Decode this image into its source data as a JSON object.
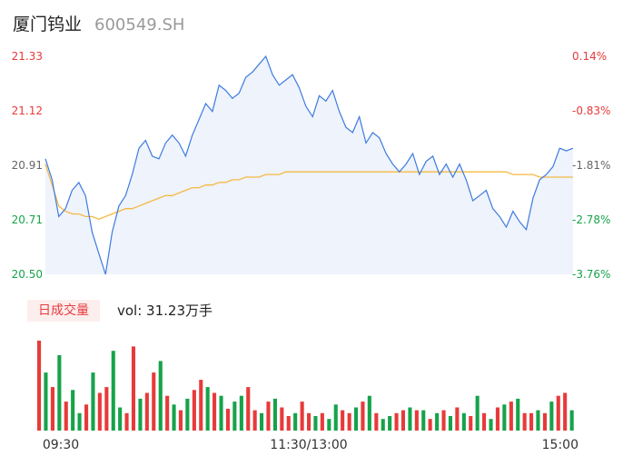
{
  "header": {
    "name": "厦门钨业",
    "code": "600549.SH"
  },
  "volume_panel": {
    "tag": "日成交量",
    "label": "vol: 31.23万手"
  },
  "colors": {
    "up": "#e83a3a",
    "down": "#16a34a",
    "price_line": "#3d7be0",
    "avg_line": "#f5b942",
    "fill": "#eef3fc"
  },
  "chart_data": [
    {
      "type": "line",
      "title": "",
      "series": [
        {
          "name": "",
          "role": "price",
          "values": [
            20.94,
            20.86,
            20.72,
            20.75,
            20.82,
            20.85,
            20.8,
            20.66,
            20.58,
            20.5,
            20.66,
            20.76,
            20.8,
            20.88,
            20.98,
            21.01,
            20.95,
            20.94,
            21.0,
            21.03,
            21.0,
            20.95,
            21.03,
            21.09,
            21.15,
            21.12,
            21.22,
            21.2,
            21.17,
            21.19,
            21.25,
            21.27,
            21.3,
            21.33,
            21.26,
            21.22,
            21.24,
            21.26,
            21.21,
            21.14,
            21.1,
            21.18,
            21.16,
            21.2,
            21.12,
            21.06,
            21.04,
            21.1,
            21.0,
            21.04,
            21.02,
            20.96,
            20.92,
            20.89,
            20.92,
            20.96,
            20.88,
            20.93,
            20.95,
            20.88,
            20.92,
            20.87,
            20.92,
            20.86,
            20.78,
            20.8,
            20.82,
            20.75,
            20.72,
            20.68,
            20.74,
            20.7,
            20.67,
            20.79,
            20.86,
            20.88,
            20.91,
            20.98,
            20.97,
            20.98
          ]
        },
        {
          "name": "",
          "role": "average",
          "values": [
            20.92,
            20.84,
            20.76,
            20.74,
            20.73,
            20.73,
            20.72,
            20.72,
            20.71,
            20.72,
            20.73,
            20.74,
            20.75,
            20.75,
            20.76,
            20.77,
            20.78,
            20.79,
            20.8,
            20.8,
            20.81,
            20.82,
            20.83,
            20.83,
            20.84,
            20.84,
            20.85,
            20.85,
            20.86,
            20.86,
            20.87,
            20.87,
            20.87,
            20.88,
            20.88,
            20.88,
            20.89,
            20.89,
            20.89,
            20.89,
            20.89,
            20.89,
            20.89,
            20.89,
            20.89,
            20.89,
            20.89,
            20.89,
            20.89,
            20.89,
            20.89,
            20.89,
            20.89,
            20.89,
            20.89,
            20.89,
            20.89,
            20.89,
            20.89,
            20.89,
            20.89,
            20.89,
            20.89,
            20.89,
            20.89,
            20.89,
            20.89,
            20.89,
            20.89,
            20.89,
            20.88,
            20.88,
            20.88,
            20.88,
            20.87,
            20.87,
            20.87,
            20.87,
            20.87,
            20.87
          ]
        }
      ],
      "ylim": [
        20.5,
        21.33
      ],
      "y_ticks_left": [
        "21.33",
        "21.12",
        "20.91",
        "20.71",
        "20.50"
      ],
      "y_ticks_right": [
        "0.14%",
        "-0.83%",
        "-1.81%",
        "-2.78%",
        "-3.76%"
      ]
    },
    {
      "type": "bar",
      "title": "",
      "x_ticks": [
        "09:30",
        "11:30/13:00",
        "15:00"
      ],
      "values": [
        62,
        40,
        30,
        52,
        20,
        28,
        12,
        18,
        40,
        26,
        30,
        55,
        16,
        12,
        58,
        22,
        26,
        40,
        48,
        24,
        18,
        14,
        22,
        28,
        35,
        30,
        26,
        24,
        15,
        20,
        24,
        30,
        14,
        12,
        20,
        22,
        16,
        10,
        12,
        20,
        12,
        10,
        12,
        8,
        18,
        14,
        12,
        16,
        20,
        24,
        12,
        8,
        10,
        12,
        14,
        16,
        14,
        14,
        8,
        12,
        14,
        10,
        16,
        12,
        10,
        24,
        12,
        8,
        16,
        18,
        20,
        22,
        12,
        12,
        14,
        12,
        20,
        24,
        26,
        14
      ],
      "colors": [
        "up",
        "down",
        "up",
        "down",
        "up",
        "down",
        "down",
        "up",
        "down",
        "up",
        "up",
        "down",
        "down",
        "up",
        "up",
        "down",
        "up",
        "up",
        "down",
        "up",
        "down",
        "up",
        "down",
        "up",
        "up",
        "down",
        "up",
        "down",
        "up",
        "down",
        "down",
        "up",
        "up",
        "down",
        "up",
        "down",
        "up",
        "up",
        "down",
        "up",
        "up",
        "down",
        "up",
        "down",
        "down",
        "up",
        "up",
        "down",
        "up",
        "down",
        "up",
        "down",
        "down",
        "up",
        "up",
        "down",
        "up",
        "down",
        "up",
        "down",
        "up",
        "down",
        "up",
        "down",
        "up",
        "down",
        "up",
        "down",
        "up",
        "down",
        "up",
        "down",
        "up",
        "up",
        "down",
        "up",
        "down",
        "up",
        "up",
        "down"
      ]
    }
  ]
}
